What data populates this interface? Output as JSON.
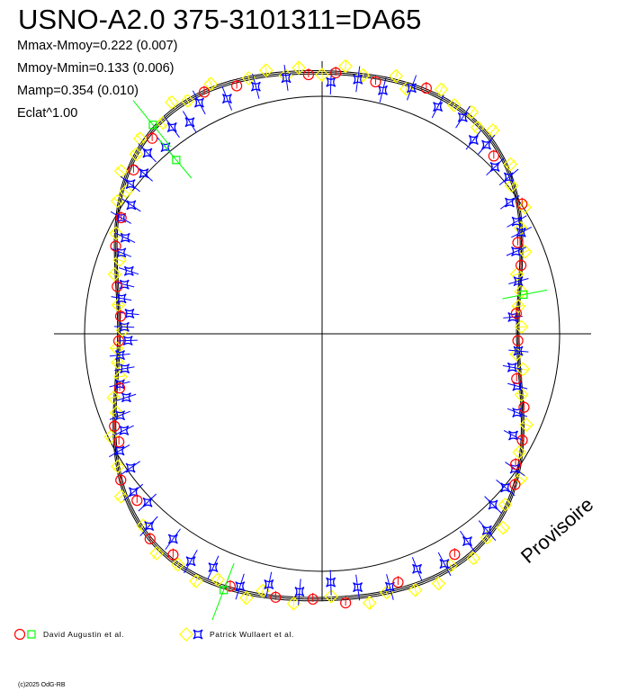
{
  "chart_data": {
    "type": "scatter",
    "subtype": "polar-lightcurve",
    "title": "USNO-A2.0 375-3101311=DA65",
    "stats": [
      "Mmax-Mmoy=0.222 (0.007)",
      "Mmoy-Mmin=0.133 (0.006)",
      "Mamp=0.354 (0.010)",
      "Eclat^1.00"
    ],
    "watermark": "Provisoire",
    "copyright": "(c)2025 OdG-RB",
    "model_mag_fourier": {
      "c0": -0.0245,
      "cos1": 0.008,
      "sin1": 0.0205,
      "cos2": -0.151,
      "cos4": 0.0635
    },
    "series": [
      {
        "name": "David Augustin et al.",
        "marker": "circle",
        "color": "#ff0000",
        "points": [
          [
            357,
            0.01
          ],
          [
            3,
            0.0
          ],
          [
            12,
            0.02
          ],
          [
            23,
            -0.01
          ],
          [
            44,
            0.03
          ],
          [
            57,
            -0.02
          ],
          [
            65,
            0.02
          ],
          [
            71,
            0.0
          ],
          [
            84,
            0.01
          ],
          [
            92,
            0.0
          ],
          [
            103,
            0.02
          ],
          [
            110,
            -0.01
          ],
          [
            118,
            0.0
          ],
          [
            124,
            0.02
          ],
          [
            128,
            0.0
          ],
          [
            149,
            0.04
          ],
          [
            163,
            0.03
          ],
          [
            175,
            -0.02
          ],
          [
            182,
            0.0
          ],
          [
            190,
            0.0
          ],
          [
            200,
            0.01
          ],
          [
            214,
            0.02
          ],
          [
            220,
            0.0
          ],
          [
            228,
            0.04
          ],
          [
            234,
            0.0
          ],
          [
            242,
            0.02
          ],
          [
            246,
            0.0
          ],
          [
            255,
            0.02
          ],
          [
            268,
            0.0
          ],
          [
            275,
            0.01
          ],
          [
            283,
            0.0
          ],
          [
            293,
            0.0
          ],
          [
            300,
            0.02
          ],
          [
            311,
            0.02
          ],
          [
            319,
            0.02
          ],
          [
            334,
            0.0
          ],
          [
            341,
            0.02
          ]
        ]
      },
      {
        "name": "David Augustin et al.",
        "marker": "square",
        "color": "#00ff00",
        "points": [
          [
            321,
            -0.014
          ],
          [
            320,
            0.167
          ],
          [
            79,
            -0.024
          ],
          [
            201,
            -0.012
          ]
        ]
      },
      {
        "name": "Patrick Wullaert et al.",
        "marker": "diamond",
        "color": "#ffff00",
        "points": [
          [
            355,
            -0.02
          ],
          [
            0,
            0.01
          ],
          [
            5,
            -0.03
          ],
          [
            9,
            0.0
          ],
          [
            16,
            -0.02
          ],
          [
            19,
            0.02
          ],
          [
            26,
            -0.03
          ],
          [
            30,
            0.0
          ],
          [
            34,
            -0.02
          ],
          [
            37,
            0.01
          ],
          [
            40,
            -0.03
          ],
          [
            48,
            -0.02
          ],
          [
            52,
            0.01
          ],
          [
            58,
            -0.03
          ],
          [
            62,
            0.0
          ],
          [
            68,
            -0.02
          ],
          [
            73,
            0.02
          ],
          [
            78,
            -0.01
          ],
          [
            82,
            0.0
          ],
          [
            88,
            -0.02
          ],
          [
            96,
            0.01
          ],
          [
            100,
            -0.02
          ],
          [
            107,
            0.0
          ],
          [
            114,
            -0.02
          ],
          [
            121,
            0.01
          ],
          [
            126,
            -0.02
          ],
          [
            133,
            0.01
          ],
          [
            137,
            -0.03
          ],
          [
            141,
            0.0
          ],
          [
            146,
            -0.02
          ],
          [
            151,
            0.01
          ],
          [
            155,
            -0.03
          ],
          [
            160,
            -0.02
          ],
          [
            166,
            0.0
          ],
          [
            170,
            -0.03
          ],
          [
            178,
            0.01
          ],
          [
            186,
            -0.02
          ],
          [
            193,
            0.02
          ],
          [
            196,
            -0.02
          ],
          [
            203,
            0.02
          ],
          [
            207,
            -0.02
          ],
          [
            212,
            0.0
          ],
          [
            217,
            -0.02
          ],
          [
            223,
            0.01
          ],
          [
            231,
            -0.02
          ],
          [
            237,
            0.0
          ],
          [
            244,
            -0.02
          ],
          [
            249,
            0.01
          ],
          [
            253,
            -0.01
          ],
          [
            258,
            0.02
          ],
          [
            262,
            0.0
          ],
          [
            266,
            -0.01
          ],
          [
            271,
            0.02
          ],
          [
            278,
            0.0
          ],
          [
            286,
            -0.01
          ],
          [
            290,
            0.02
          ],
          [
            296,
            0.0
          ],
          [
            303,
            -0.01
          ],
          [
            306,
            0.02
          ],
          [
            309,
            -0.03
          ],
          [
            314,
            0.0
          ],
          [
            317,
            -0.02
          ],
          [
            323,
            0.01
          ],
          [
            327,
            -0.03
          ],
          [
            330,
            0.0
          ],
          [
            336,
            -0.02
          ],
          [
            344,
            0.0
          ],
          [
            348,
            -0.02
          ],
          [
            352,
            0.01
          ]
        ]
      },
      {
        "name": "Patrick Wullaert et al.",
        "marker": "star",
        "color": "#0000ff",
        "points": [
          [
            2,
            0.04
          ],
          [
            8,
            0.02
          ],
          [
            14,
            0.05
          ],
          [
            20,
            0.01
          ],
          [
            27,
            0.04
          ],
          [
            33,
            0.02
          ],
          [
            38,
            0.06
          ],
          [
            41,
            0.03
          ],
          [
            46,
            0.05
          ],
          [
            50,
            0.01
          ],
          [
            55,
            0.04
          ],
          [
            60,
            0.02
          ],
          [
            63,
            0.0
          ],
          [
            67,
            0.03
          ],
          [
            75,
            0.01
          ],
          [
            85,
            0.03
          ],
          [
            95,
            0.0
          ],
          [
            100,
            0.04
          ],
          [
            105,
            0.02
          ],
          [
            112,
            0.03
          ],
          [
            118,
            0.05
          ],
          [
            125,
            0.02
          ],
          [
            130,
            0.04
          ],
          [
            135,
            0.06
          ],
          [
            140,
            0.02
          ],
          [
            145,
            0.05
          ],
          [
            152,
            0.03
          ],
          [
            158,
            0.06
          ],
          [
            165,
            0.02
          ],
          [
            172,
            0.04
          ],
          [
            178,
            0.07
          ],
          [
            185,
            0.03
          ],
          [
            192,
            0.05
          ],
          [
            198,
            0.02
          ],
          [
            205,
            0.06
          ],
          [
            210,
            0.04
          ],
          [
            216,
            0.07
          ],
          [
            222,
            0.03
          ],
          [
            226,
            0.08
          ],
          [
            230,
            0.04
          ],
          [
            235,
            0.06
          ],
          [
            240,
            0.02
          ],
          [
            244,
            0.05
          ],
          [
            248,
            0.03
          ],
          [
            252,
            0.06
          ],
          [
            256,
            0.02
          ],
          [
            260,
            0.04
          ],
          [
            264,
            0.01
          ],
          [
            268,
            0.05
          ],
          [
            272,
            0.03
          ],
          [
            276,
            0.06
          ],
          [
            280,
            0.02
          ],
          [
            284,
            0.04
          ],
          [
            288,
            0.07
          ],
          [
            292,
            0.03
          ],
          [
            296,
            0.05
          ],
          [
            300,
            0.02
          ],
          [
            304,
            0.06
          ],
          [
            308,
            0.03
          ],
          [
            312,
            0.07
          ],
          [
            316,
            0.04
          ],
          [
            320,
            0.09
          ],
          [
            324,
            0.05
          ],
          [
            328,
            0.08
          ],
          [
            332,
            0.03
          ],
          [
            338,
            0.06
          ],
          [
            345,
            0.04
          ],
          [
            352,
            0.02
          ]
        ]
      }
    ]
  },
  "legend": [
    {
      "label": "David Augustin et al."
    },
    {
      "label": "Patrick Wullaert et al."
    }
  ]
}
